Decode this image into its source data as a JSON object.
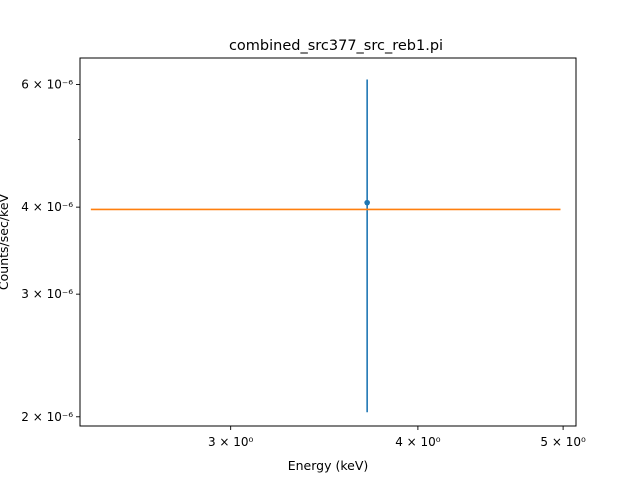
{
  "chart_data": {
    "type": "scatter",
    "title": "combined_src377_src_reb1.pi",
    "xlabel": "Energy (keV)",
    "ylabel": "Counts/sec/keV",
    "x_scale": "log",
    "y_scale": "log",
    "xlim": [
      2.38,
      5.1
    ],
    "ylim": [
      1.94e-06,
      6.55e-06
    ],
    "grid": false,
    "x_major_ticks": [
      {
        "value": 3,
        "label": "3 × 10⁰"
      },
      {
        "value": 4,
        "label": "4 × 10⁰"
      },
      {
        "value": 5,
        "label": "5 × 10⁰"
      }
    ],
    "y_major_ticks": [
      {
        "value": 2e-06,
        "label": "2 × 10⁻⁶"
      },
      {
        "value": 3e-06,
        "label": "3 × 10⁻⁶"
      },
      {
        "value": 4e-06,
        "label": "4 × 10⁻⁶"
      },
      {
        "value": 6e-06,
        "label": "6 × 10⁻⁶"
      }
    ],
    "y_minor_ticks": [
      5e-06
    ],
    "series": [
      {
        "kind": "errorbar",
        "color": "#1f77b4",
        "points": [
          {
            "x": 3.7,
            "y": 4.06e-06,
            "yerr_low": 2.03e-06,
            "yerr_high": 6.1e-06
          }
        ]
      },
      {
        "kind": "line",
        "color": "#ff7f0e",
        "x": [
          2.42,
          4.98
        ],
        "y": [
          3.97e-06,
          3.97e-06
        ]
      }
    ]
  }
}
